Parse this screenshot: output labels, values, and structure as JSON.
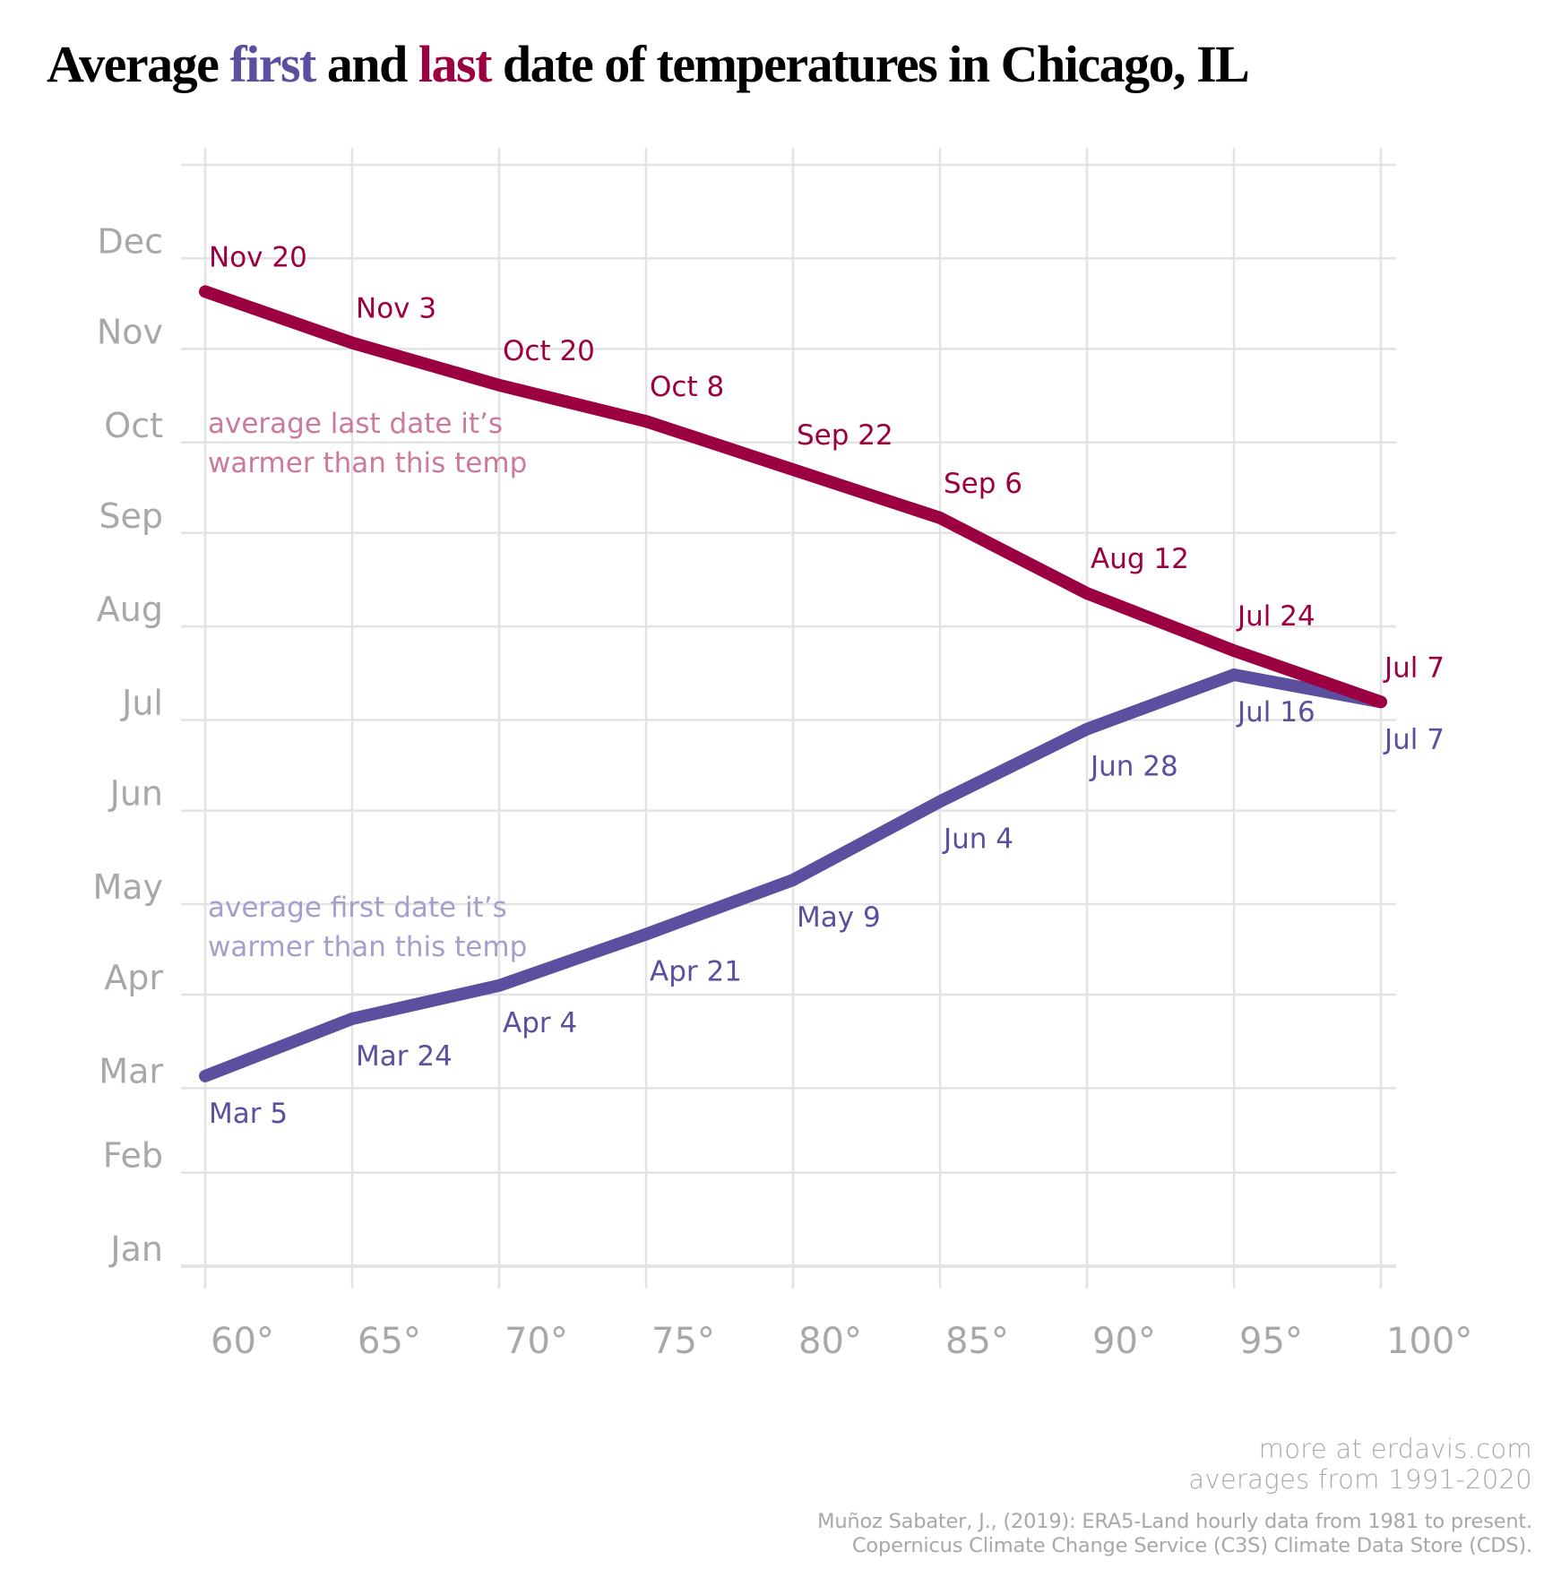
{
  "title": {
    "prefix": "Average ",
    "first_word": "first",
    "middle": " and ",
    "last_word": "last",
    "suffix": " date of temperatures in Chicago, IL"
  },
  "colors": {
    "first": "#5b50a0",
    "last": "#9b0040",
    "first_annotation": "#a59fcc",
    "last_annotation": "#cc7a9a",
    "grid": "#e3e3e3",
    "axis_text": "#a8a8a8"
  },
  "chart_data": {
    "type": "line",
    "title": "Average first and last date of temperatures in Chicago, IL",
    "xlabel": "",
    "ylabel": "",
    "x": [
      60,
      65,
      70,
      75,
      80,
      85,
      90,
      95,
      100
    ],
    "x_tick_labels": [
      "60°",
      "65°",
      "70°",
      "75°",
      "80°",
      "85°",
      "90°",
      "95°",
      "100°"
    ],
    "xlim": [
      60,
      100
    ],
    "y_unit": "day of year (0 = Jan 1)",
    "ylim": [
      0,
      365
    ],
    "y_ticks": [
      {
        "label": "Jan",
        "day": 0
      },
      {
        "label": "Feb",
        "day": 31
      },
      {
        "label": "Mar",
        "day": 59
      },
      {
        "label": "Apr",
        "day": 90
      },
      {
        "label": "May",
        "day": 120
      },
      {
        "label": "Jun",
        "day": 151
      },
      {
        "label": "Jul",
        "day": 181
      },
      {
        "label": "Aug",
        "day": 212
      },
      {
        "label": "Sep",
        "day": 243
      },
      {
        "label": "Oct",
        "day": 273
      },
      {
        "label": "Nov",
        "day": 304
      },
      {
        "label": "Dec",
        "day": 334
      },
      {
        "label": "",
        "day": 365
      }
    ],
    "grid": true,
    "legend": "none (inline annotations)",
    "series": [
      {
        "name": "last",
        "annotation": [
          "average last date it’s",
          "warmer than this temp"
        ],
        "labels": [
          "Nov 20",
          "Nov 3",
          "Oct 20",
          "Oct 8",
          "Sep 22",
          "Sep 6",
          "Aug 12",
          "Jul 24",
          "Jul 7"
        ],
        "values": [
          323,
          306,
          292,
          280,
          264,
          248,
          223,
          204,
          187
        ]
      },
      {
        "name": "first",
        "annotation": [
          "average first date it’s",
          "warmer than this temp"
        ],
        "labels": [
          "Mar 5",
          "Mar 24",
          "Apr 4",
          "Apr 21",
          "May 9",
          "Jun 4",
          "Jun 28",
          "Jul 16",
          "Jul 7"
        ],
        "values": [
          63,
          82,
          93,
          110,
          128,
          154,
          178,
          196,
          187
        ]
      }
    ]
  },
  "footer": {
    "line1": "more at erdavis.com",
    "line2": "averages from 1991-2020",
    "cite1": "Muñoz Sabater, J., (2019): ERA5-Land hourly data from 1981 to present.",
    "cite2": "Copernicus Climate Change Service (C3S) Climate Data Store (CDS)."
  }
}
